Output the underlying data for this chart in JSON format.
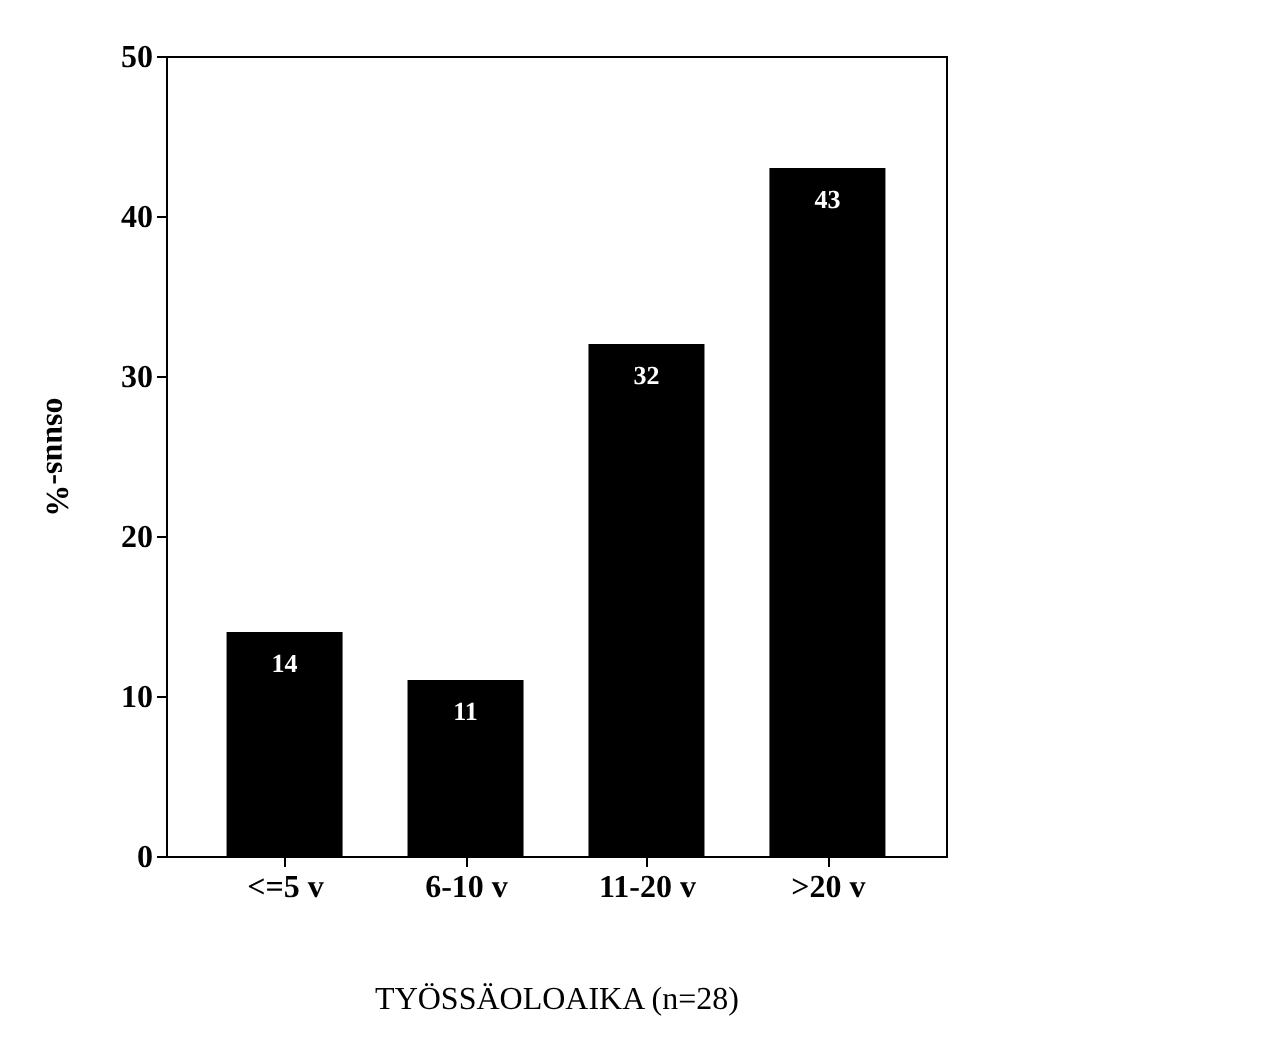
{
  "chart_data": {
    "type": "bar",
    "xlabel": "TYÖSSÄOLOAIKA (n=28)",
    "ylabel": "osuus-%",
    "categories": [
      "<=5 v",
      "6-10 v",
      "11-20 v",
      ">20 v"
    ],
    "values": [
      14,
      11,
      32,
      43
    ],
    "color": "#000000",
    "ylim": [
      0,
      50
    ],
    "yticks": [
      0,
      10,
      20,
      30,
      40,
      50
    ],
    "grid": false,
    "data_labels": true
  }
}
